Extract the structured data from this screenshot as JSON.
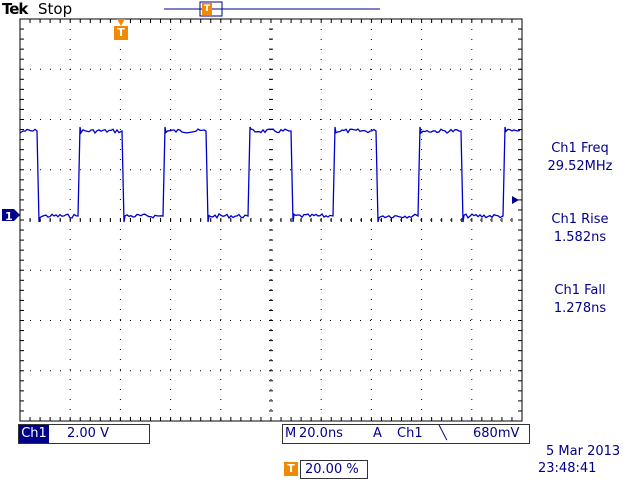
{
  "header": {
    "brand": "Tek",
    "acquisition_state": "Stop"
  },
  "trigger_marker_glyph": "T",
  "channel_marker_glyph": "1",
  "measurements": [
    {
      "label": "Ch1 Freq",
      "value": "29.52MHz"
    },
    {
      "label": "Ch1 Rise",
      "value": "1.582ns"
    },
    {
      "label": "Ch1 Fall",
      "value": "1.278ns"
    }
  ],
  "footer": {
    "channel_tag": "Ch1",
    "channel_scale": "2.00 V",
    "timebase_prefix": "M",
    "timebase": "20.0ns",
    "trigger_prefix": "A",
    "trigger_source": "Ch1",
    "trigger_slope_glyph": "╲",
    "trigger_level": "680mV",
    "trigger_position": "20.00 %",
    "date": "5 Mar  2013",
    "time": "23:48:41"
  },
  "colors": {
    "trace": "#0000cc",
    "text": "#00008b",
    "trigger_marker": "#f08a00",
    "grid": "#000000"
  }
}
